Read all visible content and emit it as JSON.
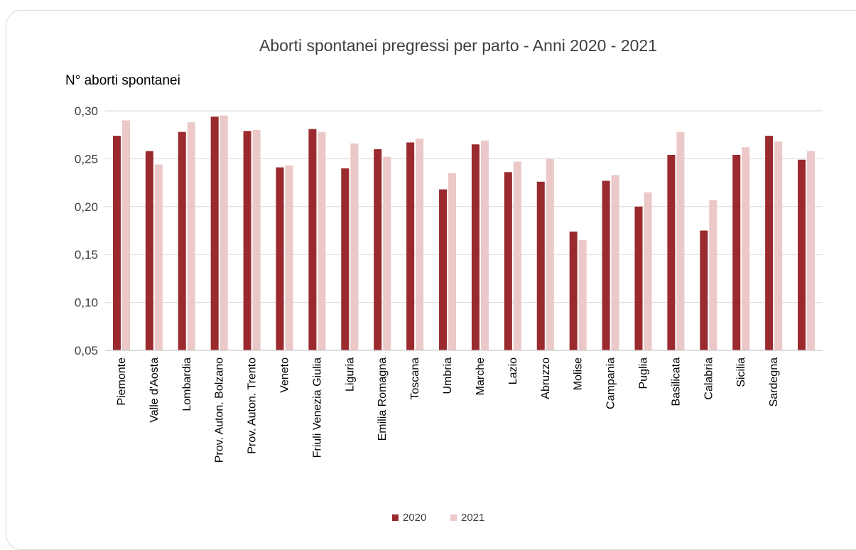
{
  "chart_data": {
    "type": "bar",
    "title": "Aborti spontanei pregressi per parto - Anni 2020 - 2021",
    "ylabel": "N° aborti spontanei",
    "xlabel": "",
    "ylim": [
      0.05,
      0.3
    ],
    "yticks": [
      0.05,
      0.1,
      0.15,
      0.2,
      0.25,
      0.3
    ],
    "ytick_labels": [
      "0,05",
      "0,10",
      "0,15",
      "0,20",
      "0,25",
      "0,30"
    ],
    "grid": true,
    "legend_position": "bottom",
    "categories": [
      "Piemonte",
      "Valle d'Aosta",
      "Lombardia",
      "Prov. Auton. Bolzano",
      "Prov. Auton. Trento",
      "Veneto",
      "Friuli Venezia Giulia",
      "Liguria",
      "Emilia Romagna",
      "Toscana",
      "Umbria",
      "Marche",
      "Lazio",
      "Abruzzo",
      "Molise",
      "Campania",
      "Puglia",
      "Basilicata",
      "Calabria",
      "Sicilia",
      "Sardegna",
      ""
    ],
    "series": [
      {
        "name": "2020",
        "color": "#9b2a2e",
        "values": [
          0.274,
          0.258,
          0.278,
          0.294,
          0.279,
          0.241,
          0.281,
          0.24,
          0.26,
          0.267,
          0.218,
          0.265,
          0.236,
          0.226,
          0.174,
          0.227,
          0.2,
          0.254,
          0.175,
          0.254,
          0.274,
          0.249
        ]
      },
      {
        "name": "2021",
        "color": "#ecc8c8",
        "values": [
          0.29,
          0.244,
          0.288,
          0.295,
          0.28,
          0.243,
          0.278,
          0.266,
          0.252,
          0.271,
          0.235,
          0.269,
          0.247,
          0.25,
          0.165,
          0.233,
          0.215,
          0.278,
          0.207,
          0.262,
          0.268,
          0.258
        ]
      }
    ]
  }
}
